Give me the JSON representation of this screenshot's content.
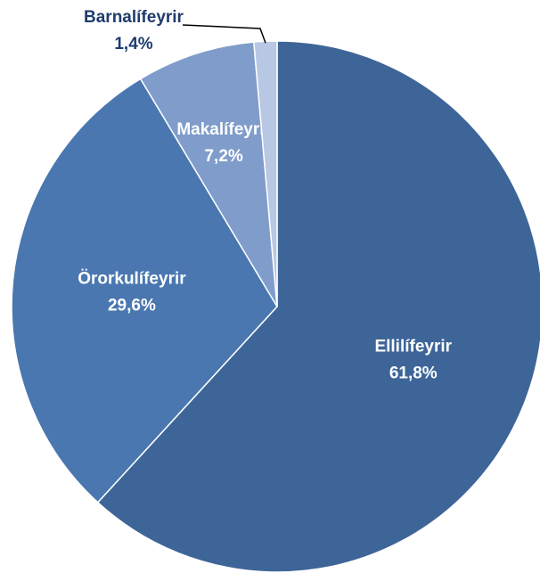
{
  "chart_data": {
    "type": "pie",
    "categories": [
      "Ellilífeyrir",
      "Örorkulífeyrir",
      "Makalífeyrir",
      "Barnalífeyrir"
    ],
    "values": [
      61.8,
      29.6,
      7.2,
      1.4
    ],
    "value_labels": [
      "61,8%",
      "29,6%",
      "7,2%",
      "1,4%"
    ],
    "colors": [
      "#3e6598",
      "#4a77b0",
      "#7f9ccb",
      "#b8c7e3"
    ]
  }
}
